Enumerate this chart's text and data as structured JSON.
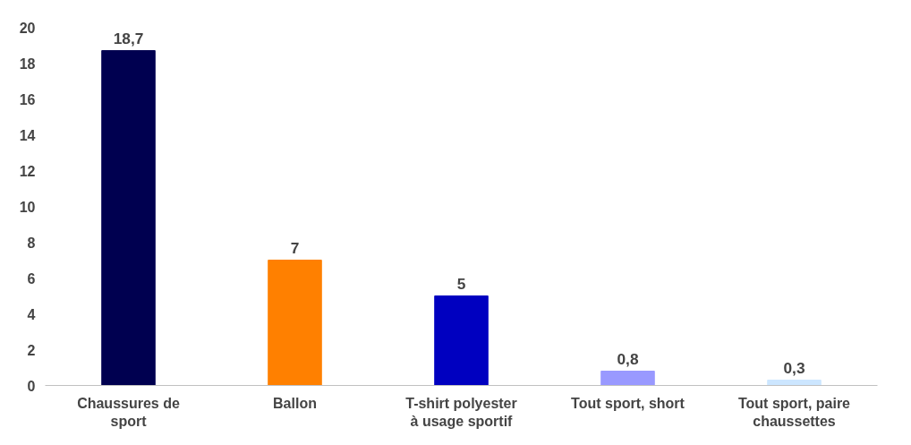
{
  "chart_data": {
    "type": "bar",
    "categories": [
      "Chaussures de sport",
      "Ballon",
      "T-shirt polyester à usage sportif",
      "Tout sport, short",
      "Tout sport, paire chaussettes"
    ],
    "values": [
      18.7,
      7,
      5,
      0.8,
      0.3
    ],
    "colors": [
      "#000050",
      "#ff8000",
      "#0000c0",
      "#9999ff",
      "#cce6ff"
    ],
    "value_labels": [
      "18,7",
      "7",
      "5",
      "0,8",
      "0,3"
    ],
    "ylim": [
      0,
      20
    ],
    "yticks": [
      0,
      2,
      4,
      6,
      8,
      10,
      12,
      14,
      16,
      18,
      20
    ],
    "grid": false
  }
}
